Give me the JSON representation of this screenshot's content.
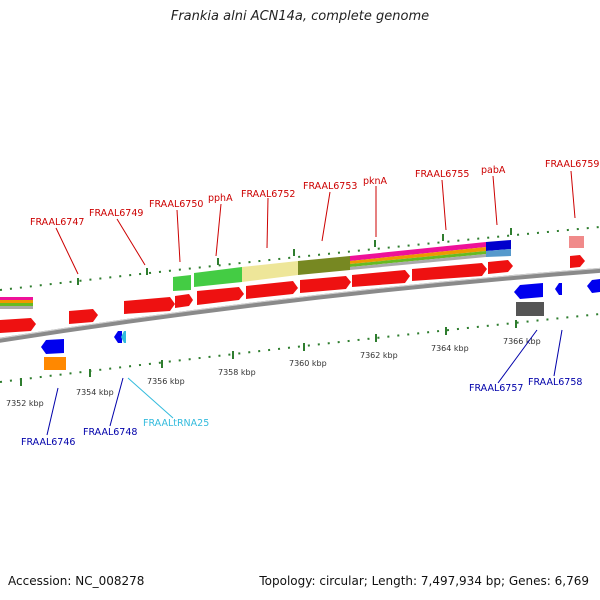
{
  "header": {
    "title": "Frankia alni ACN14a, complete genome"
  },
  "footer": {
    "accession": "Accession: NC_008278",
    "summary": "Topology: circular; Length: 7,497,934 bp; Genes: 6,769"
  },
  "scale": {
    "ticks": [
      "7352 kbp",
      "7354 kbp",
      "7356 kbp",
      "7358 kbp",
      "7360 kbp",
      "7362 kbp",
      "7364 kbp",
      "7366 kbp"
    ]
  },
  "genes_forward": [
    "FRAAL6747",
    "FRAAL6749",
    "FRAAL6750",
    "pphA",
    "FRAAL6752",
    "FRAAL6753",
    "pknA",
    "FRAAL6755",
    "pabA",
    "FRAAL6759"
  ],
  "genes_reverse": [
    "FRAAL6746",
    "FRAAL6748",
    "FRAALtRNA25",
    "FRAAL6757",
    "FRAAL6758"
  ],
  "colors": {
    "forward": "#cc0000",
    "reverse": "#0000aa",
    "trna": "#33bbdd",
    "gene_block": "#ee1111",
    "backbone": "#8a8a8a",
    "tick": "#2e7d2e"
  }
}
